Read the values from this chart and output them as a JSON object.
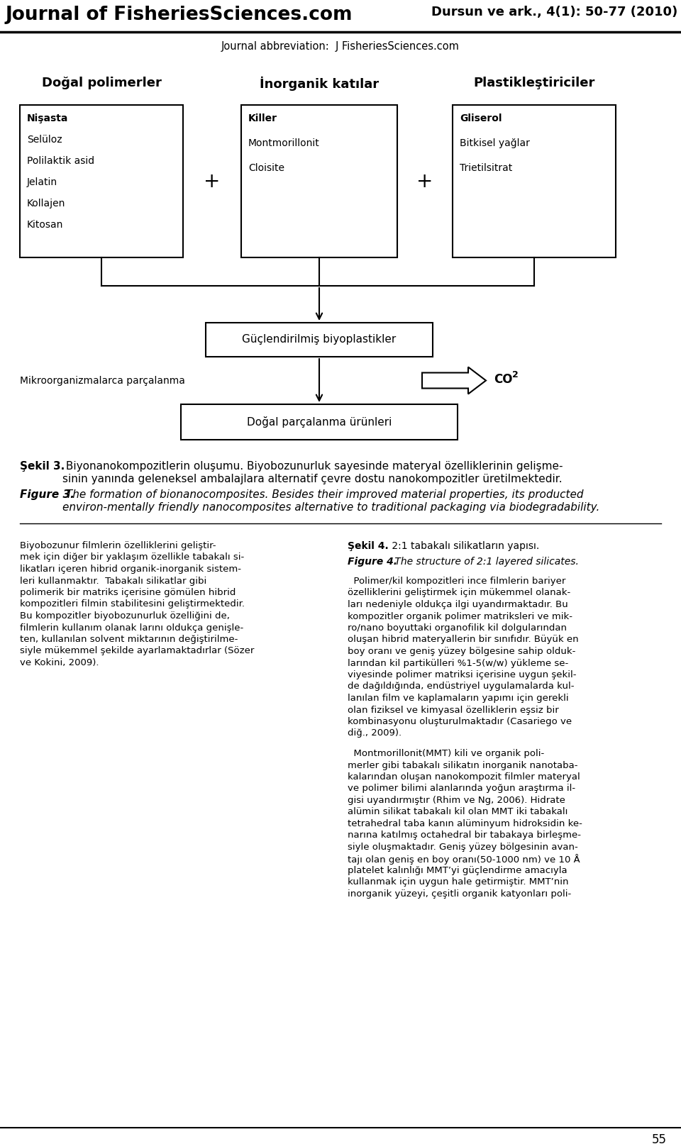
{
  "title_left": "Journal of FisheriesSciences.com",
  "title_right": "Dursun ve ark., 4(1): 50-77 (2010)",
  "subtitle": "Journal abbreviation:  J FisheriesSciences.com",
  "box1_title": "Doğal polimerler",
  "box1_items_bold": [
    "Nişasta"
  ],
  "box1_items": [
    "Nişasta",
    "Selüloz",
    "Polilaktik asid",
    "Jelatin",
    "Kollajen",
    "Kitosan"
  ],
  "box2_title": "İnorganik katılar",
  "box2_items_bold": [
    "Killer"
  ],
  "box2_items": [
    "Killer",
    "Montmorillonit",
    "Cloisite"
  ],
  "box3_title": "Plastikleştiriciler",
  "box3_items_bold": [
    "Gliserol"
  ],
  "box3_items": [
    "Gliserol",
    "Bitkisel yağlar",
    "Trietilsitrat"
  ],
  "box4_text": "Güçlendirilmiş biyoplastikler",
  "box5_text": "Doğal parçalanma ürünleri",
  "left_label": "Mikroorganizmalarca parçalanma",
  "co2_label": "CO",
  "co2_sub": "2",
  "caption_bold": "Şekil 3.",
  "caption_text1": " Biyonanokompozitlerin oluşumu. Biyobozunurluk sayesinde materyal özelliklerinin gelişme-",
  "caption_text2": "sinin yanında geleneksel ambalajlara alternatif çevre dostu nanokompozitler üretilmektedir.",
  "figure_bold": "Figure 3.",
  "figure_text1": " The formation of bionanocomposites. Besides their improved material properties, its producted",
  "figure_text2": "environ-mentally friendly nanocomposites alternative to traditional packaging via biodegradability.",
  "body_left_col": [
    "Biyobozunur filmlerin özelliklerini geliştir-",
    "mek için diğer bir yaklaşım özellikle tabakalı si-",
    "likatları içeren hibrid organik-inorganik sistem-",
    "leri kullanmaktır.  Tabakalı silikatlar gibi",
    "polimerik bir matriks içerisine gömülen hibrid",
    "kompozitleri filmin stabilitesini geliştirmektedir.",
    "Bu kompozitler biyobozunurluk özelliğini de,",
    "filmlerin kullanım olanak larını oldukça genişle-",
    "ten, kullanılan solvent miktarının değiştirilme-",
    "siyle mükemmel şekilde ayarlamaktadırlar (Sözer",
    "ve Kokini, 2009)."
  ],
  "sekil4_bold": "Şekil 4.",
  "sekil4_text": " 2:1 tabakalı silikatların yapısı.",
  "figure4_bold": "Figure 4.",
  "figure4_text": " The structure of 2:1 layered silicates.",
  "body_right_col": [
    "  Polimer/kil kompozitleri ince filmlerin bariyer",
    "özelliklerini geliştirmek için mükemmel olanak-",
    "ları nedeniyle oldukça ilgi uyandırmaktadır. Bu",
    "kompozitler organik polimer matriksleri ve mik-",
    "ro/nano boyuttaki organofilik kil dolgularından",
    "oluşan hibrid materyallerin bir sınıfıdır. Büyük en",
    "boy oranı ve geniş yüzey bölgesine sahip olduk-",
    "larından kil partikülleri %1-5(w/w) yükleme se-",
    "viyesinde polimer matriksi içerisine uygun şekil-",
    "de dağıldığında, endüstriyel uygulamalarda kul-",
    "lanılan film ve kaplamaların yapımı için gerekli",
    "olan fiziksel ve kimyasal özelliklerin eşsiz bir",
    "kombinasyonu oluşturulmaktadır (Casariego ve",
    "diğ., 2009)."
  ],
  "body_right_col2": [
    "  Montmorillonit(MMT) kili ve organik poli-",
    "merler gibi tabakalı silikatın inorganik nanotaba-",
    "kalarından oluşan nanokompozit filmler materyal",
    "ve polimer bilimi alanlarında yoğun araştırma il-",
    "gisi uyandırmıştır (Rhim ve Ng, 2006). Hidrate",
    "alümin silikat tabakalı kil olan MMT iki tabakalı",
    "tetrahedral taba kanın alüminyum hidroksidin ke-",
    "narına katılmış octahedral bir tabakaya birleşme-",
    "siyle oluşmaktadır. Geniş yüzey bölgesinin avan-",
    "tajı olan geniş en boy oranı(50-1000 nm) ve 10 Å",
    "platelet kalınlığı MMT’yi güçlendirme amacıyla",
    "kullanmak için uygun hale getirmiştir. MMT’nin",
    "inorganik yüzeyi, çeşitli organik katyonları poli-"
  ],
  "page_number": "55",
  "bg_color": "#ffffff"
}
